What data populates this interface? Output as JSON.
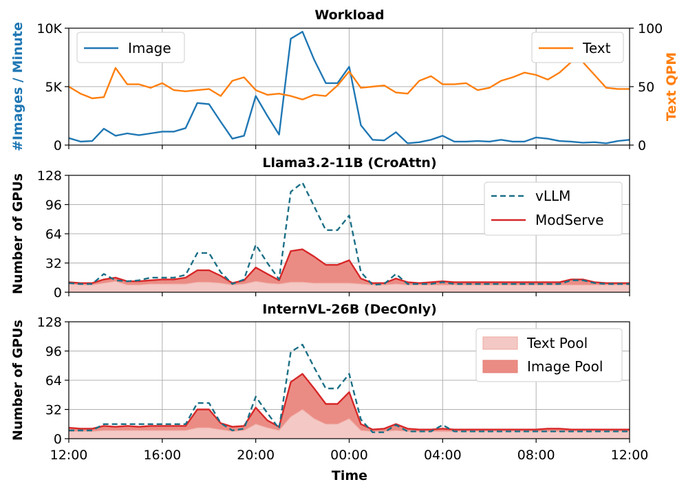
{
  "chart_data": [
    {
      "type": "line",
      "title": "Workload",
      "xlabel": "",
      "ylabel": "#Images / Minute",
      "ylabel_right": "Text QPM",
      "ylim": [
        0,
        10000
      ],
      "ylim_right": [
        0,
        100
      ],
      "yticks": [
        "0",
        "5K",
        "10K"
      ],
      "yticks_right": [
        "0",
        "50",
        "100"
      ],
      "legend_left": "top-left",
      "legend_right": "top-right",
      "grid": true,
      "x": [
        0,
        0.5,
        1,
        1.5,
        2,
        2.5,
        3,
        3.5,
        4,
        4.5,
        5,
        5.5,
        6,
        6.5,
        7,
        7.5,
        8,
        8.5,
        9,
        9.5,
        10,
        10.5,
        11,
        11.5,
        12,
        12.5,
        13,
        13.5,
        14,
        14.5,
        15,
        15.5,
        16,
        16.5,
        17,
        17.5,
        18,
        18.5,
        19,
        19.5,
        20,
        20.5,
        21,
        21.5,
        22,
        22.5,
        23,
        23.5,
        24
      ],
      "series": [
        {
          "name": "Image",
          "axis": "left",
          "color": "#1f77b4",
          "values": [
            600,
            300,
            350,
            1400,
            800,
            1000,
            850,
            1000,
            1150,
            1150,
            1450,
            3600,
            3500,
            2000,
            550,
            800,
            4200,
            2500,
            900,
            9100,
            9700,
            7300,
            5300,
            5300,
            6700,
            1700,
            450,
            400,
            1100,
            150,
            250,
            450,
            800,
            300,
            300,
            350,
            300,
            450,
            300,
            300,
            650,
            550,
            350,
            300,
            200,
            250,
            150,
            350,
            450
          ]
        },
        {
          "name": "Text",
          "axis": "right",
          "color": "#ff7f0e",
          "values": [
            50,
            44,
            40,
            41,
            66,
            52,
            52,
            49,
            53,
            47,
            46,
            47,
            48,
            42,
            55,
            58,
            47,
            43,
            44,
            42,
            39,
            43,
            42,
            51,
            63,
            49,
            50,
            51,
            45,
            44,
            55,
            59,
            52,
            52,
            53,
            47,
            49,
            55,
            58,
            62,
            60,
            56,
            62,
            71,
            71,
            60,
            49,
            48,
            48
          ]
        }
      ]
    },
    {
      "type": "area",
      "title": "Llama3.2-11B (CroAttn)",
      "ylabel": "Number of GPUs",
      "ylim": [
        0,
        128
      ],
      "yticks": [
        "0",
        "32",
        "64",
        "96",
        "128"
      ],
      "legend": "top-right",
      "grid": true,
      "x": [
        0,
        0.5,
        1,
        1.5,
        2,
        2.5,
        3,
        3.5,
        4,
        4.5,
        5,
        5.5,
        6,
        6.5,
        7,
        7.5,
        8,
        8.5,
        9,
        9.5,
        10,
        10.5,
        11,
        11.5,
        12,
        12.5,
        13,
        13.5,
        14,
        14.5,
        15,
        15.5,
        16,
        16.5,
        17,
        17.5,
        18,
        18.5,
        19,
        19.5,
        20,
        20.5,
        21,
        21.5,
        22,
        22.5,
        23,
        23.5,
        24
      ],
      "series": [
        {
          "name": "vLLM",
          "style": "dashed",
          "color": "#1b6f86",
          "values": [
            10,
            9,
            9,
            20,
            13,
            12,
            13,
            16,
            16,
            16,
            19,
            43,
            43,
            22,
            9,
            14,
            52,
            32,
            14,
            110,
            120,
            94,
            68,
            68,
            84,
            22,
            8,
            9,
            20,
            9,
            9,
            9,
            11,
            9,
            9,
            9,
            9,
            9,
            9,
            9,
            9,
            9,
            9,
            13,
            13,
            10,
            9,
            9,
            9
          ]
        },
        {
          "name": "ModServe",
          "style": "solid",
          "color": "#d62728",
          "values": [
            11,
            10,
            10,
            14,
            16,
            12,
            12,
            13,
            14,
            14,
            16,
            24,
            24,
            18,
            10,
            13,
            27,
            20,
            13,
            45,
            47,
            39,
            30,
            30,
            35,
            15,
            10,
            10,
            15,
            11,
            10,
            11,
            12,
            11,
            11,
            11,
            11,
            11,
            11,
            11,
            11,
            11,
            11,
            14,
            14,
            11,
            10,
            10,
            10
          ]
        },
        {
          "name": "",
          "style": "fill-text-pool",
          "color": "#f4c8c4",
          "values": [
            9,
            8,
            8,
            10,
            12,
            8,
            8,
            9,
            9,
            9,
            9,
            11,
            11,
            10,
            8,
            9,
            12,
            10,
            9,
            11,
            11,
            10,
            10,
            10,
            10,
            9,
            8,
            8,
            9,
            8,
            8,
            8,
            8,
            8,
            8,
            8,
            8,
            8,
            8,
            8,
            8,
            8,
            8,
            8,
            8,
            8,
            8,
            8,
            8
          ]
        }
      ]
    },
    {
      "type": "area",
      "title": "InternVL-26B (DecOnly)",
      "xlabel": "Time",
      "ylabel": "Number of GPUs",
      "ylim": [
        0,
        128
      ],
      "yticks": [
        "0",
        "32",
        "64",
        "96",
        "128"
      ],
      "xticks": [
        "12:00",
        "16:00",
        "20:00",
        "00:00",
        "04:00",
        "08:00",
        "12:00"
      ],
      "legend": "top-right",
      "grid": true,
      "x": [
        0,
        0.5,
        1,
        1.5,
        2,
        2.5,
        3,
        3.5,
        4,
        4.5,
        5,
        5.5,
        6,
        6.5,
        7,
        7.5,
        8,
        8.5,
        9,
        9.5,
        10,
        10.5,
        11,
        11.5,
        12,
        12.5,
        13,
        13.5,
        14,
        14.5,
        15,
        15.5,
        16,
        16.5,
        17,
        17.5,
        18,
        18.5,
        19,
        19.5,
        20,
        20.5,
        21,
        21.5,
        22,
        22.5,
        23,
        23.5,
        24
      ],
      "series": [
        {
          "name": "vLLM",
          "style": "dashed",
          "color": "#1b6f86",
          "values": [
            9,
            9,
            9,
            16,
            16,
            16,
            16,
            16,
            16,
            16,
            16,
            39,
            39,
            17,
            9,
            11,
            46,
            28,
            11,
            95,
            103,
            78,
            55,
            55,
            71,
            21,
            7,
            7,
            15,
            8,
            8,
            8,
            15,
            8,
            8,
            8,
            8,
            8,
            8,
            8,
            8,
            8,
            8,
            8,
            8,
            8,
            8,
            8,
            8
          ]
        },
        {
          "name": "Image Pool",
          "style": "fill-image-pool",
          "color": "#eb8c84",
          "values": [
            12,
            11,
            11,
            14,
            13,
            14,
            13,
            14,
            14,
            14,
            14,
            32,
            32,
            17,
            13,
            14,
            34,
            20,
            13,
            62,
            71,
            55,
            38,
            38,
            51,
            16,
            10,
            11,
            16,
            11,
            10,
            10,
            11,
            10,
            10,
            10,
            10,
            10,
            10,
            10,
            10,
            11,
            11,
            10,
            10,
            10,
            10,
            10,
            10
          ]
        },
        {
          "name": "Text Pool",
          "style": "fill-text-pool",
          "color": "#f4c8c4",
          "values": [
            8,
            8,
            8,
            9,
            9,
            9,
            9,
            9,
            9,
            9,
            9,
            12,
            12,
            10,
            8,
            9,
            16,
            12,
            9,
            24,
            32,
            22,
            16,
            16,
            22,
            9,
            8,
            8,
            9,
            8,
            8,
            8,
            8,
            8,
            8,
            8,
            8,
            8,
            8,
            8,
            8,
            8,
            8,
            8,
            8,
            8,
            8,
            8,
            8
          ]
        }
      ]
    }
  ],
  "legend_labels": {
    "image": "Image",
    "text": "Text",
    "vllm": "vLLM",
    "modserve": "ModServe",
    "text_pool": "Text Pool",
    "image_pool": "Image Pool"
  },
  "colors": {
    "image": "#1f77b4",
    "text": "#ff7f0e",
    "vllm": "#1b6f86",
    "modserve": "#d62728",
    "text_pool": "#f4c8c4",
    "image_pool": "#eb8c84"
  }
}
